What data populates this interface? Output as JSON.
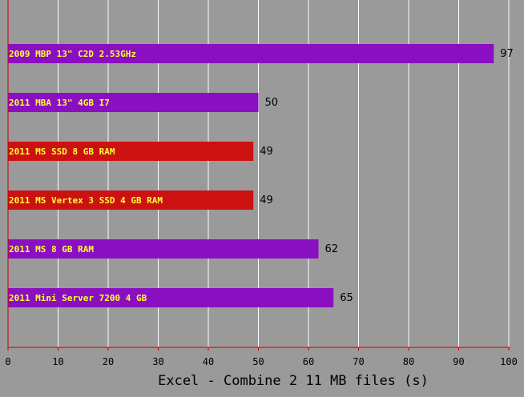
{
  "chart_data": {
    "type": "bar",
    "orientation": "horizontal",
    "categories": [
      "2009 MBP 13\" C2D 2.53GHz",
      "2011 MBA 13\" 4GB I7",
      "2011 MS SSD 8 GB RAM",
      "2011 MS Vertex 3 SSD 4 GB RAM",
      "2011 MS 8 GB RAM",
      "2011 Mini Server 7200 4 GB"
    ],
    "values": [
      97,
      50,
      49,
      49,
      62,
      65
    ],
    "bar_colors": [
      "#8a0fc2",
      "#8a0fc2",
      "#cc1111",
      "#cc1111",
      "#8a0fc2",
      "#8a0fc2"
    ],
    "xlabel": "Excel - Combine 2 11 MB files (s)",
    "ylabel": "",
    "title": "",
    "xlim": [
      0,
      100
    ],
    "xticks": [
      0,
      10,
      20,
      30,
      40,
      50,
      60,
      70,
      80,
      90,
      100
    ],
    "grid": "vertical",
    "background": "#9a9a9a",
    "axis_color": "#cc0000",
    "label_color": "#ffff33"
  }
}
